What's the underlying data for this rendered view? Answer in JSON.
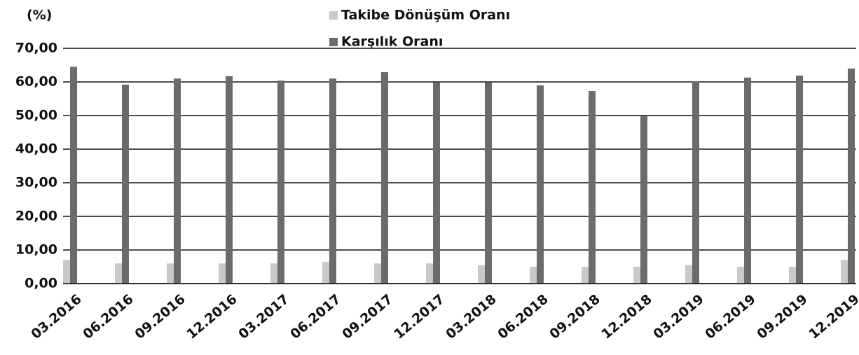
{
  "chart_data": {
    "type": "bar",
    "y_label": "(%)",
    "categories": [
      "03.2016",
      "06.2016",
      "09.2016",
      "12.2016",
      "03.2017",
      "06.2017",
      "09.2017",
      "12.2017",
      "03.2018",
      "06.2018",
      "09.2018",
      "12.2018",
      "03.2019",
      "06.2019",
      "09.2019",
      "12.2019"
    ],
    "series": [
      {
        "name": "Takibe Dönüşüm Oranı",
        "color": "#c9c9c9",
        "values": [
          7,
          6,
          6,
          6,
          6,
          6.5,
          6,
          6,
          5.5,
          5,
          5,
          5,
          5.5,
          5,
          5,
          7
        ]
      },
      {
        "name": "Karşılık Oranı",
        "color": "#6b6b6b",
        "values": [
          64.5,
          59.2,
          61,
          61.7,
          60.4,
          61,
          62.9,
          59.8,
          59.8,
          59,
          57.3,
          49.8,
          60.2,
          61.3,
          61.9,
          64
        ]
      }
    ],
    "ylim": [
      0,
      70
    ],
    "yticks": [
      {
        "value": 0,
        "label": "0,00"
      },
      {
        "value": 10,
        "label": "10,00"
      },
      {
        "value": 20,
        "label": "20,00"
      },
      {
        "value": 30,
        "label": "30,00"
      },
      {
        "value": 40,
        "label": "40,00"
      },
      {
        "value": 50,
        "label": "50,00"
      },
      {
        "value": 60,
        "label": "60,00"
      },
      {
        "value": 70,
        "label": "70,00"
      }
    ],
    "grid": true,
    "legend": "top"
  }
}
